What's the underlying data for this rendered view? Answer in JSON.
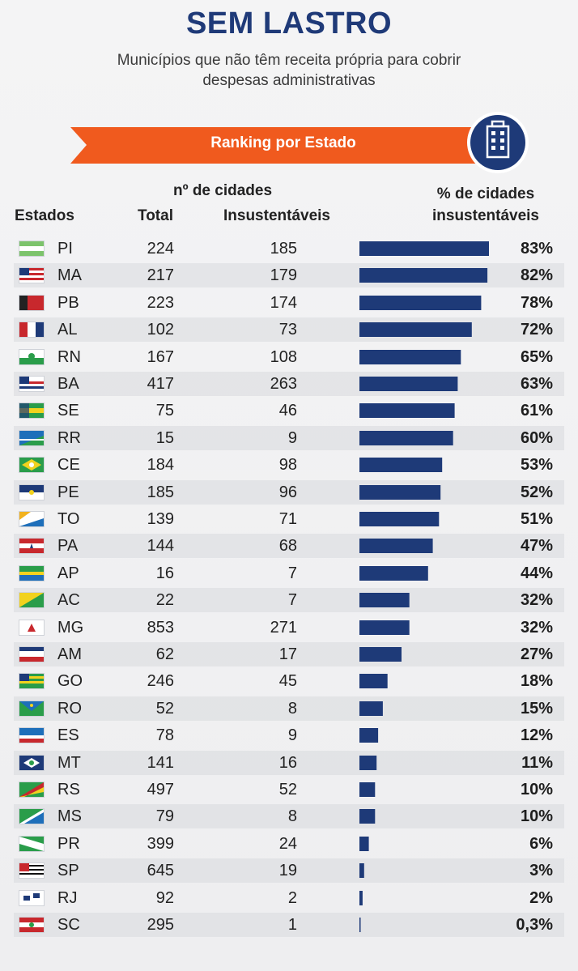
{
  "title": "SEM LASTRO",
  "subtitle_line1": "Municípios que não têm receita própria para cobrir",
  "subtitle_line2": "despesas administrativas",
  "ribbon_label": "Ranking por Estado",
  "colors": {
    "title": "#1f3a78",
    "ribbon": "#f05a1e",
    "bar": "#1e3a78",
    "badge": "#1e3a78"
  },
  "headers": {
    "group": "nº de cidades",
    "estados": "Estados",
    "total": "Total",
    "insustentaveis": "Insustentáveis",
    "pct_line1": "% de cidades",
    "pct_line2": "insustentáveis"
  },
  "chart_data": {
    "type": "bar",
    "orientation": "horizontal",
    "title": "SEM LASTRO",
    "subtitle": "Municípios que não têm receita própria para cobrir despesas administrativas",
    "xlim": [
      0,
      83
    ],
    "rows": [
      {
        "uf": "PI",
        "total": "224",
        "insust": "185",
        "pct": 83,
        "pct_label": "83%",
        "flag": "pi-flag-icon"
      },
      {
        "uf": "MA",
        "total": "217",
        "insust": "179",
        "pct": 82,
        "pct_label": "82%",
        "flag": "ma-flag-icon"
      },
      {
        "uf": "PB",
        "total": "223",
        "insust": "174",
        "pct": 78,
        "pct_label": "78%",
        "flag": "pb-flag-icon"
      },
      {
        "uf": "AL",
        "total": "102",
        "insust": "73",
        "pct": 72,
        "pct_label": "72%",
        "flag": "al-flag-icon"
      },
      {
        "uf": "RN",
        "total": "167",
        "insust": "108",
        "pct": 65,
        "pct_label": "65%",
        "flag": "rn-flag-icon"
      },
      {
        "uf": "BA",
        "total": "417",
        "insust": "263",
        "pct": 63,
        "pct_label": "63%",
        "flag": "ba-flag-icon"
      },
      {
        "uf": "SE",
        "total": "75",
        "insust": "46",
        "pct": 61,
        "pct_label": "61%",
        "flag": "se-flag-icon"
      },
      {
        "uf": "RR",
        "total": "15",
        "insust": "9",
        "pct": 60,
        "pct_label": "60%",
        "flag": "rr-flag-icon"
      },
      {
        "uf": "CE",
        "total": "184",
        "insust": "98",
        "pct": 53,
        "pct_label": "53%",
        "flag": "ce-flag-icon"
      },
      {
        "uf": "PE",
        "total": "185",
        "insust": "96",
        "pct": 52,
        "pct_label": "52%",
        "flag": "pe-flag-icon"
      },
      {
        "uf": "TO",
        "total": "139",
        "insust": "71",
        "pct": 51,
        "pct_label": "51%",
        "flag": "to-flag-icon"
      },
      {
        "uf": "PA",
        "total": "144",
        "insust": "68",
        "pct": 47,
        "pct_label": "47%",
        "flag": "pa-flag-icon"
      },
      {
        "uf": "AP",
        "total": "16",
        "insust": "7",
        "pct": 44,
        "pct_label": "44%",
        "flag": "ap-flag-icon"
      },
      {
        "uf": "AC",
        "total": "22",
        "insust": "7",
        "pct": 32,
        "pct_label": "32%",
        "flag": "ac-flag-icon"
      },
      {
        "uf": "MG",
        "total": "853",
        "insust": "271",
        "pct": 32,
        "pct_label": "32%",
        "flag": "mg-flag-icon"
      },
      {
        "uf": "AM",
        "total": "62",
        "insust": "17",
        "pct": 27,
        "pct_label": "27%",
        "flag": "am-flag-icon"
      },
      {
        "uf": "GO",
        "total": "246",
        "insust": "45",
        "pct": 18,
        "pct_label": "18%",
        "flag": "go-flag-icon"
      },
      {
        "uf": "RO",
        "total": "52",
        "insust": "8",
        "pct": 15,
        "pct_label": "15%",
        "flag": "ro-flag-icon"
      },
      {
        "uf": "ES",
        "total": "78",
        "insust": "9",
        "pct": 12,
        "pct_label": "12%",
        "flag": "es-flag-icon"
      },
      {
        "uf": "MT",
        "total": "141",
        "insust": "16",
        "pct": 11,
        "pct_label": "11%",
        "flag": "mt-flag-icon"
      },
      {
        "uf": "RS",
        "total": "497",
        "insust": "52",
        "pct": 10,
        "pct_label": "10%",
        "flag": "rs-flag-icon"
      },
      {
        "uf": "MS",
        "total": "79",
        "insust": "8",
        "pct": 10,
        "pct_label": "10%",
        "flag": "ms-flag-icon"
      },
      {
        "uf": "PR",
        "total": "399",
        "insust": "24",
        "pct": 6,
        "pct_label": "6%",
        "flag": "pr-flag-icon"
      },
      {
        "uf": "SP",
        "total": "645",
        "insust": "19",
        "pct": 3,
        "pct_label": "3%",
        "flag": "sp-flag-icon"
      },
      {
        "uf": "RJ",
        "total": "92",
        "insust": "2",
        "pct": 2,
        "pct_label": "2%",
        "flag": "rj-flag-icon"
      },
      {
        "uf": "SC",
        "total": "295",
        "insust": "1",
        "pct": 0.3,
        "pct_label": "0,3%",
        "flag": "sc-flag-icon"
      }
    ]
  }
}
